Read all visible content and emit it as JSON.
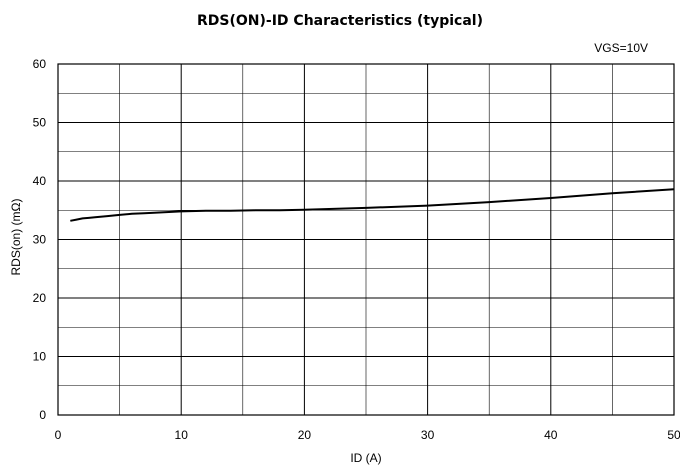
{
  "chart_data": {
    "type": "line",
    "title": "RDS(ON)-ID Characteristics (typical)",
    "condition": "VGS=10V",
    "xlabel": "ID (A)",
    "ylabel": "RDS(on) (mΩ)",
    "xlim": [
      0,
      50
    ],
    "ylim": [
      0,
      60
    ],
    "xticks": [
      0,
      10,
      20,
      30,
      40,
      50
    ],
    "yticks": [
      0,
      10,
      20,
      30,
      40,
      50,
      60
    ],
    "grid": true,
    "series": [
      {
        "x": [
          1,
          1.5,
          2,
          2.5,
          3,
          4,
          5,
          6,
          7,
          8,
          9,
          10,
          12,
          14,
          16,
          18,
          20,
          25,
          30,
          35,
          40,
          45,
          50
        ],
        "y": [
          33.2,
          33.4,
          33.6,
          33.7,
          33.8,
          34.0,
          34.2,
          34.4,
          34.5,
          34.6,
          34.7,
          34.8,
          34.9,
          34.9,
          35.0,
          35.0,
          35.1,
          35.4,
          35.8,
          36.4,
          37.1,
          37.9,
          38.6
        ]
      }
    ]
  }
}
